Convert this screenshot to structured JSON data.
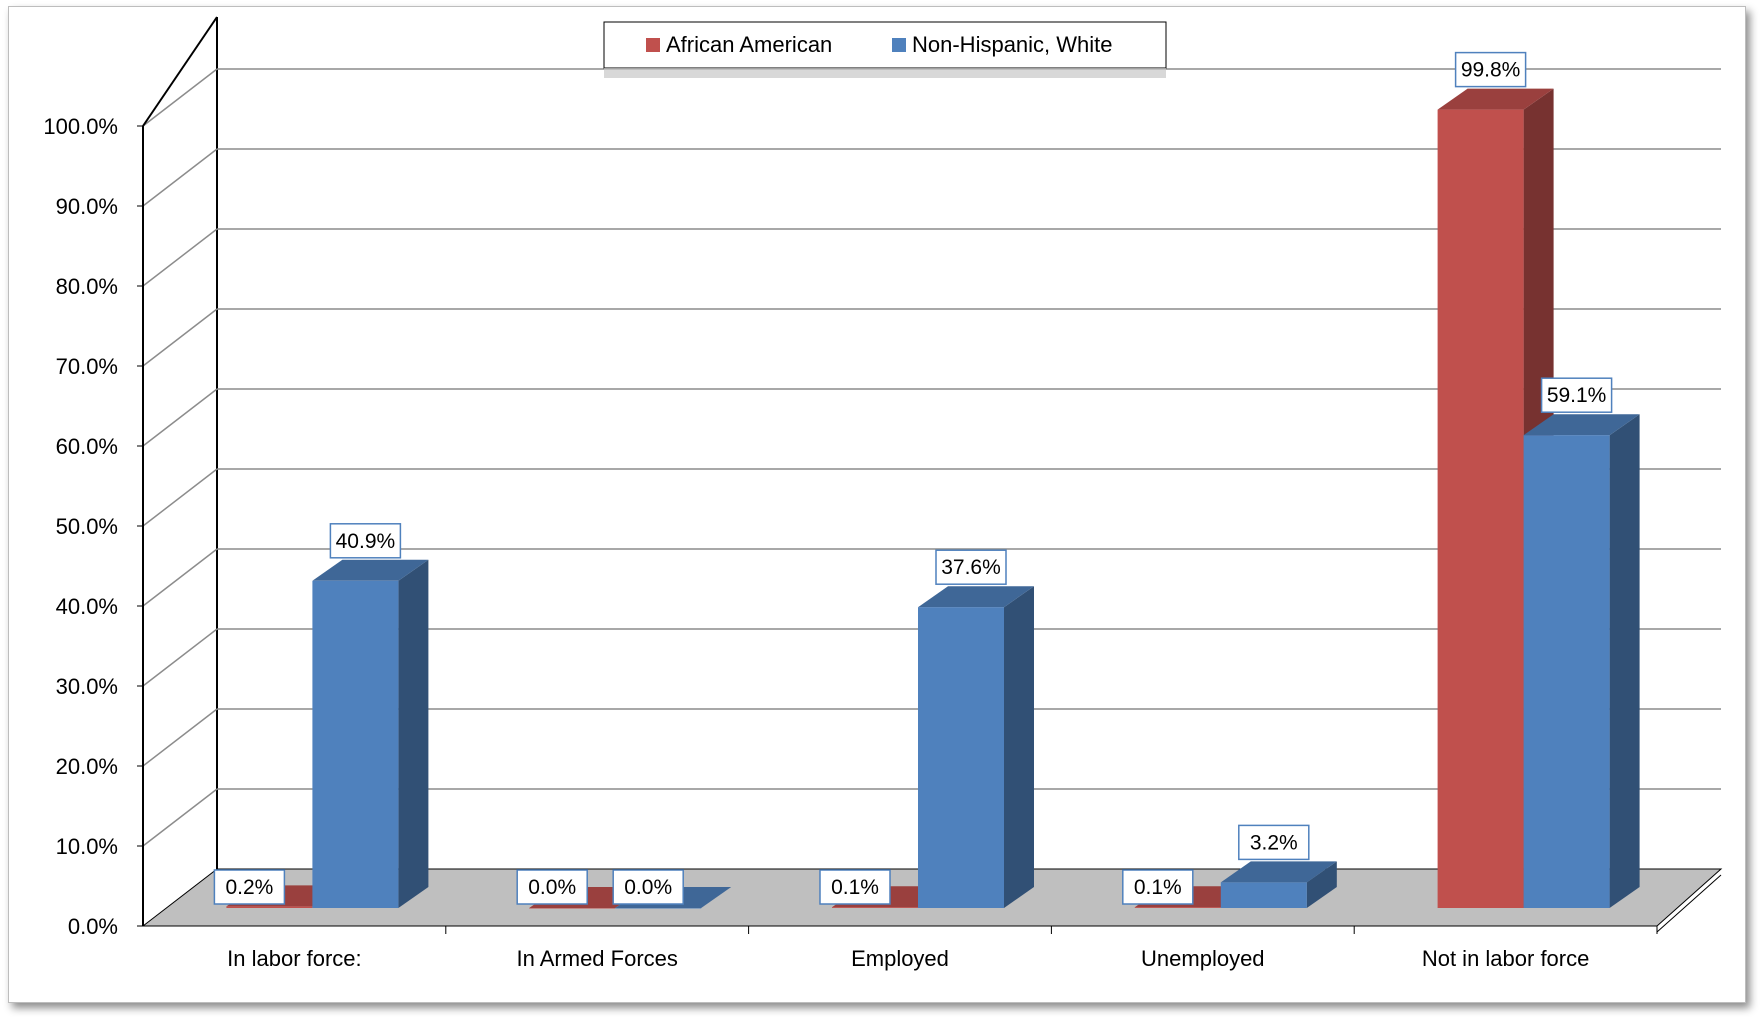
{
  "chart_data": {
    "type": "bar",
    "title": "",
    "xlabel": "",
    "ylabel": "",
    "categories": [
      "In labor force:",
      "In Armed Forces",
      "Employed",
      "Unemployed",
      "Not in labor force"
    ],
    "series": [
      {
        "name": "African American",
        "values": [
          0.2,
          0.0,
          0.1,
          0.1,
          99.8
        ],
        "labels": [
          "0.2%",
          "0.0%",
          "0.1%",
          "0.1%",
          "99.8%"
        ],
        "color": "#c0504d"
      },
      {
        "name": "Non-Hispanic, White",
        "values": [
          40.9,
          0.0,
          37.6,
          3.2,
          59.1
        ],
        "labels": [
          "40.9%",
          "0.0%",
          "37.6%",
          "3.2%",
          "59.1%"
        ],
        "color": "#4f81bd"
      }
    ],
    "ylim": [
      0,
      100
    ],
    "ytick_labels": [
      "0.0%",
      "10.0%",
      "20.0%",
      "30.0%",
      "40.0%",
      "50.0%",
      "60.0%",
      "70.0%",
      "80.0%",
      "90.0%",
      "100.0%"
    ],
    "grid": true,
    "legend_position": "top-center",
    "style": "3d-clustered-column"
  }
}
